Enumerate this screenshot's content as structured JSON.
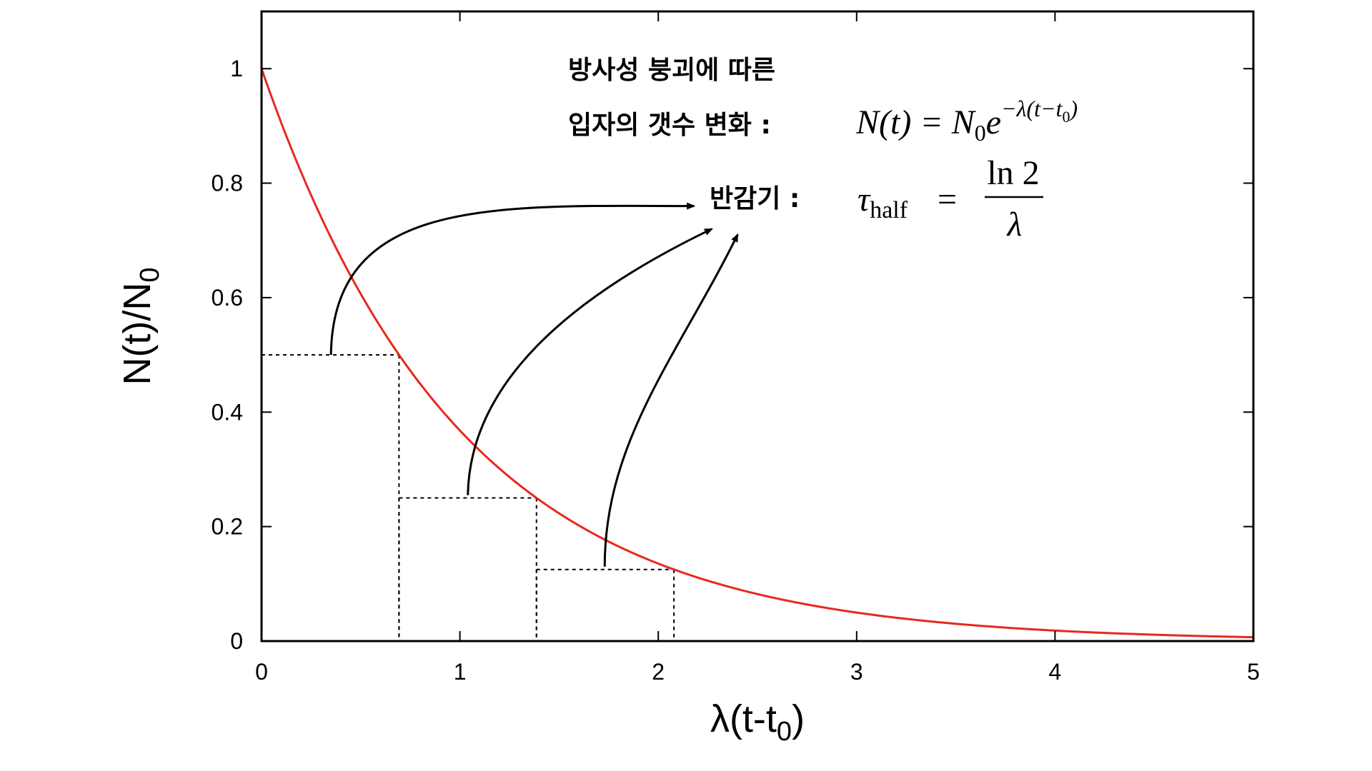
{
  "chart_data": {
    "type": "line",
    "xlabel": "λ(t-t",
    "xlabel_sub": "0",
    "xlabel_close": ")",
    "ylabel": "N(t)/N",
    "ylabel_sub": "0",
    "xlim": [
      0,
      5
    ],
    "ylim": [
      0,
      1.1
    ],
    "x_ticks": [
      0,
      1,
      2,
      3,
      4,
      5
    ],
    "y_ticks": [
      0,
      0.2,
      0.4,
      0.6,
      0.8,
      1
    ],
    "y_tick_labels": [
      "0",
      "0.2",
      "0.4",
      "0.6",
      "0.8",
      "1"
    ],
    "x_tick_labels": [
      "0",
      "1",
      "2",
      "3",
      "4",
      "5"
    ],
    "grid": false,
    "series": [
      {
        "color": "#e8281e",
        "function": "exp(-x)",
        "x": [
          0,
          0.25,
          0.5,
          0.75,
          1,
          1.25,
          1.5,
          1.75,
          2,
          2.25,
          2.5,
          2.75,
          3,
          3.25,
          3.5,
          3.75,
          4,
          4.25,
          4.5,
          4.75,
          5
        ],
        "values": [
          1,
          0.779,
          0.607,
          0.472,
          0.368,
          0.287,
          0.223,
          0.174,
          0.135,
          0.105,
          0.082,
          0.064,
          0.05,
          0.039,
          0.03,
          0.024,
          0.018,
          0.014,
          0.011,
          0.009,
          0.007
        ]
      }
    ],
    "half_life_markers": [
      {
        "x": 0.693,
        "y": 0.5
      },
      {
        "x": 1.386,
        "y": 0.25
      },
      {
        "x": 2.079,
        "y": 0.125
      }
    ],
    "annotations": {
      "line1": "방사성 붕괴에 따른",
      "line2_text": "입자의 갯수 변화 :",
      "line2_formula": {
        "lhs": "N(t) = N",
        "sub": "0",
        "base": "e",
        "exponent": "−λ(t−t",
        "exp_sub": "0",
        "exp_close": ")"
      },
      "line3_text": "반감기 :",
      "line3_formula": {
        "tau": "τ",
        "tau_sub": "half",
        "equals": "=",
        "numerator": "ln 2",
        "denominator": "λ"
      }
    },
    "colors": {
      "curve": "#e8281e",
      "frame": "#000000",
      "dashed": "#000000",
      "arrows": "#000000"
    }
  }
}
